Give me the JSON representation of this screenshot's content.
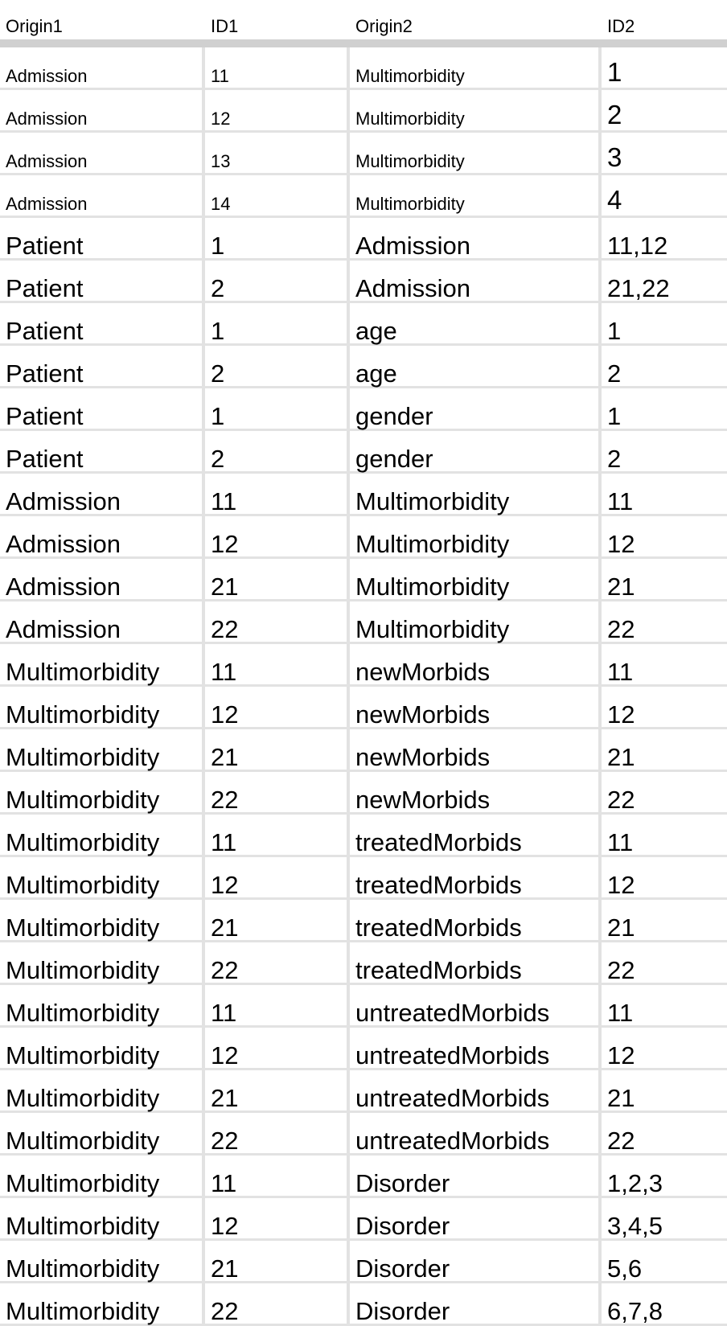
{
  "header": {
    "origin1": "Origin1",
    "id1": "ID1",
    "origin2": "Origin2",
    "id2": "ID2"
  },
  "rows": [
    {
      "origin1": "Admission",
      "id1": "11",
      "origin2": "Multimorbidity",
      "id2": "1",
      "size": "small"
    },
    {
      "origin1": "Admission",
      "id1": "12",
      "origin2": "Multimorbidity",
      "id2": "2",
      "size": "small"
    },
    {
      "origin1": "Admission",
      "id1": "13",
      "origin2": "Multimorbidity",
      "id2": "3",
      "size": "small"
    },
    {
      "origin1": "Admission",
      "id1": "14",
      "origin2": "Multimorbidity",
      "id2": "4",
      "size": "small"
    },
    {
      "origin1": "Patient",
      "id1": "1",
      "origin2": "Admission",
      "id2": "11,12",
      "size": "big"
    },
    {
      "origin1": "Patient",
      "id1": "2",
      "origin2": "Admission",
      "id2": "21,22",
      "size": "big"
    },
    {
      "origin1": "Patient",
      "id1": "1",
      "origin2": "age",
      "id2": "1",
      "size": "big"
    },
    {
      "origin1": "Patient",
      "id1": "2",
      "origin2": "age",
      "id2": "2",
      "size": "big"
    },
    {
      "origin1": "Patient",
      "id1": "1",
      "origin2": "gender",
      "id2": "1",
      "size": "big"
    },
    {
      "origin1": "Patient",
      "id1": "2",
      "origin2": "gender",
      "id2": "2",
      "size": "big"
    },
    {
      "origin1": "Admission",
      "id1": "11",
      "origin2": "Multimorbidity",
      "id2": "11",
      "size": "big"
    },
    {
      "origin1": "Admission",
      "id1": "12",
      "origin2": "Multimorbidity",
      "id2": "12",
      "size": "big"
    },
    {
      "origin1": "Admission",
      "id1": "21",
      "origin2": "Multimorbidity",
      "id2": "21",
      "size": "big"
    },
    {
      "origin1": "Admission",
      "id1": "22",
      "origin2": "Multimorbidity",
      "id2": "22",
      "size": "big"
    },
    {
      "origin1": "Multimorbidity",
      "id1": "11",
      "origin2": "newMorbids",
      "id2": "11",
      "size": "big"
    },
    {
      "origin1": "Multimorbidity",
      "id1": "12",
      "origin2": "newMorbids",
      "id2": "12",
      "size": "big"
    },
    {
      "origin1": "Multimorbidity",
      "id1": "21",
      "origin2": "newMorbids",
      "id2": "21",
      "size": "big"
    },
    {
      "origin1": "Multimorbidity",
      "id1": "22",
      "origin2": "newMorbids",
      "id2": "22",
      "size": "big"
    },
    {
      "origin1": "Multimorbidity",
      "id1": "11",
      "origin2": "treatedMorbids",
      "id2": "11",
      "size": "big"
    },
    {
      "origin1": "Multimorbidity",
      "id1": "12",
      "origin2": "treatedMorbids",
      "id2": "12",
      "size": "big"
    },
    {
      "origin1": "Multimorbidity",
      "id1": "21",
      "origin2": "treatedMorbids",
      "id2": "21",
      "size": "big"
    },
    {
      "origin1": "Multimorbidity",
      "id1": "22",
      "origin2": "treatedMorbids",
      "id2": "22",
      "size": "big"
    },
    {
      "origin1": "Multimorbidity",
      "id1": "11",
      "origin2": "untreatedMorbids",
      "id2": "11",
      "size": "big"
    },
    {
      "origin1": "Multimorbidity",
      "id1": "12",
      "origin2": "untreatedMorbids",
      "id2": "12",
      "size": "big"
    },
    {
      "origin1": "Multimorbidity",
      "id1": "21",
      "origin2": "untreatedMorbids",
      "id2": "21",
      "size": "big"
    },
    {
      "origin1": "Multimorbidity",
      "id1": "22",
      "origin2": "untreatedMorbids",
      "id2": "22",
      "size": "big"
    },
    {
      "origin1": "Multimorbidity",
      "id1": "11",
      "origin2": "Disorder",
      "id2": "1,2,3",
      "size": "big"
    },
    {
      "origin1": "Multimorbidity",
      "id1": "12",
      "origin2": "Disorder",
      "id2": "3,4,5",
      "size": "big"
    },
    {
      "origin1": "Multimorbidity",
      "id1": "21",
      "origin2": "Disorder",
      "id2": "5,6",
      "size": "big"
    },
    {
      "origin1": "Multimorbidity",
      "id1": "22",
      "origin2": "Disorder",
      "id2": "6,7,8",
      "size": "big"
    }
  ]
}
